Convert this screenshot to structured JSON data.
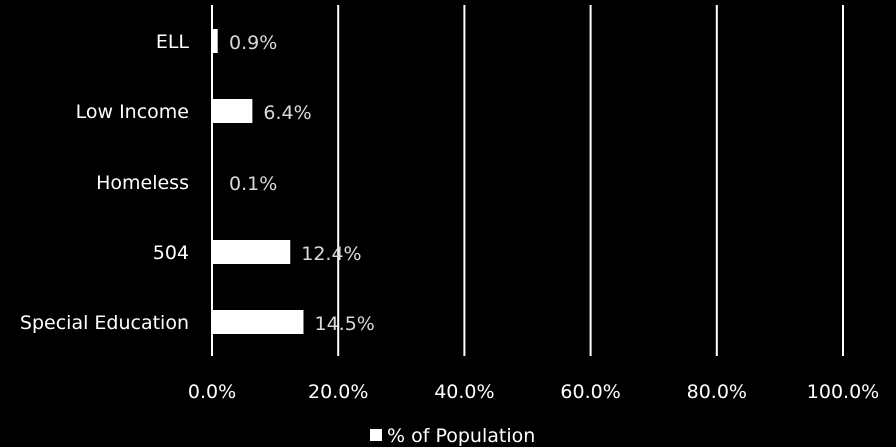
{
  "chart_data": {
    "type": "bar",
    "orientation": "horizontal",
    "categories": [
      "ELL",
      "Low Income",
      "Homeless",
      "504",
      "Special Education"
    ],
    "series": [
      {
        "name": "% of Population",
        "values": [
          0.9,
          6.4,
          0.1,
          12.4,
          14.5
        ],
        "data_labels": [
          "0.9%",
          "6.4%",
          "0.1%",
          "12.4%",
          "14.5%"
        ],
        "color": "#ffffff"
      }
    ],
    "xlim": [
      0,
      100
    ],
    "x_ticks": [
      0,
      20,
      40,
      60,
      80,
      100
    ],
    "x_tick_labels": [
      "0.0%",
      "20.0%",
      "40.0%",
      "60.0%",
      "80.0%",
      "100.0%"
    ],
    "grid": "vertical",
    "legend": "bottom",
    "background": "#000000"
  }
}
